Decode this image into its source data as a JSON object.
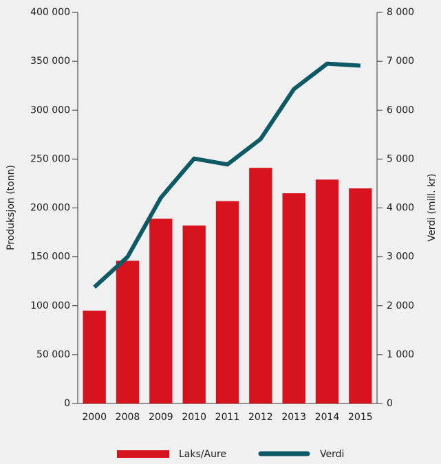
{
  "chart_data": {
    "type": "bar_line",
    "categories": [
      "2000",
      "2008",
      "2009",
      "2010",
      "2011",
      "2012",
      "2013",
      "2014",
      "2015"
    ],
    "series": [
      {
        "name": "Laks/Aure",
        "color": "#d7141e",
        "type": "bar",
        "values": [
          95000,
          146000,
          189000,
          182000,
          207000,
          241000,
          215000,
          229000,
          220000
        ]
      },
      {
        "name": "Verdi",
        "color": "#0e5a64",
        "type": "line",
        "axis": "y2",
        "values": [
          2380,
          3000,
          4210,
          5010,
          4890,
          5410,
          6430,
          6950,
          6910
        ]
      }
    ],
    "ylabel": "Produksjon (tonn)",
    "y2label": "Verdi (mill. kr)",
    "ylim": [
      0,
      400000
    ],
    "yticks": [
      0,
      {
        "value": 50000,
        "label": "50 000"
      },
      {
        "value": 100000,
        "label": "100 000"
      },
      {
        "value": 150000,
        "label": "150 000"
      },
      {
        "value": 200000,
        "label": "200 000"
      },
      {
        "value": 250000,
        "label": "250 000"
      },
      {
        "value": 300000,
        "label": "300 000"
      },
      {
        "value": 350000,
        "label": "350 000"
      },
      {
        "value": 400000,
        "label": "400 000"
      }
    ],
    "y2lim": [
      0,
      8000
    ],
    "y2ticks": [
      0,
      {
        "value": 1000,
        "label": "1 000"
      },
      {
        "value": 2000,
        "label": "2 000"
      },
      {
        "value": 3000,
        "label": "3 000"
      },
      {
        "value": 4000,
        "label": "4 000"
      },
      {
        "value": 5000,
        "label": "5 000"
      },
      {
        "value": 6000,
        "label": "6 000"
      },
      {
        "value": 7000,
        "label": "7 000"
      },
      {
        "value": 8000,
        "label": "8 000"
      }
    ],
    "legend": "bottom",
    "grid": false
  }
}
